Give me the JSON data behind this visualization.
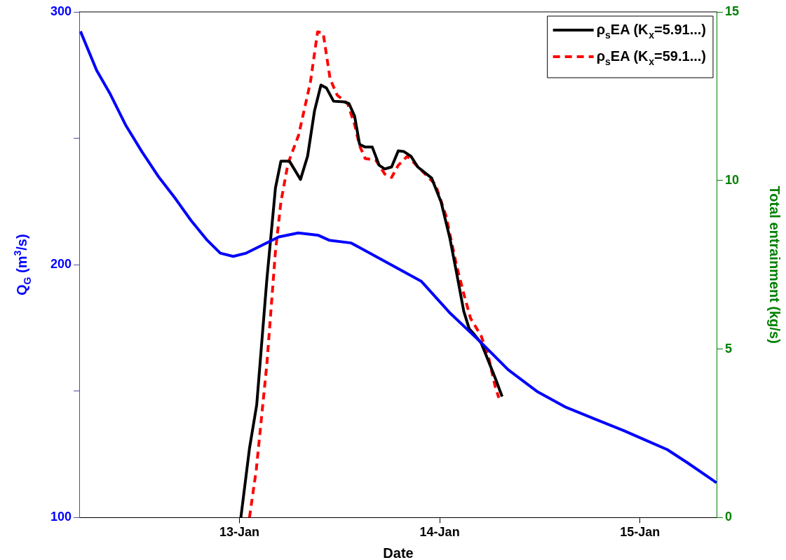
{
  "chart_data": {
    "type": "line",
    "xlabel": "Date",
    "ylabel": "Q$_{G}$ (m$^{3}$/s)",
    "y2label": "Total entrainment (kg/s)",
    "xlim": [
      "--01-12T04:48",
      "--01-15T09:16"
    ],
    "xticks": [
      {
        "value": "--01-13",
        "label": "13-Jan"
      },
      {
        "value": "--01-14",
        "label": "14-Jan"
      },
      {
        "value": "--01-15",
        "label": "15-Jan"
      }
    ],
    "ylim": [
      100,
      300
    ],
    "yticks": [
      100,
      {
        "value": 150,
        "label": null
      },
      200,
      {
        "value": 250,
        "label": null
      },
      300
    ],
    "y2lim": [
      0,
      15
    ],
    "y2ticks": [
      0,
      5,
      10,
      15
    ],
    "grid": false,
    "legend": "top right",
    "marker": "none",
    "series": [
      {
        "color": "#0000ff",
        "line_style": "solid",
        "x": [
          "--01-12T04:57",
          "--01-12T06:53",
          "--01-12T08:27",
          "--01-12T10:24",
          "--01-12T12:20",
          "--01-12T14:17",
          "--01-12T16:15",
          "--01-12T18:12",
          "--01-12T20:08",
          "--01-12T21:42",
          "--01-12T23:15",
          "--01-13T00:49",
          "--01-13T02:23",
          "--01-13T04:42",
          "--01-13T07:03",
          "--01-13T09:24",
          "--01-13T10:45",
          "--01-13T13:24",
          "--01-13T17:36",
          "--01-13T21:49",
          "--01-14T01:16",
          "--01-14T04:45",
          "--01-14T08:12",
          "--01-14T11:40",
          "--01-14T15:09",
          "--01-14T18:36",
          "--01-14T22:03",
          "--01-15T00:50",
          "--01-15T03:16",
          "--01-15T05:41",
          "--01-15T09:10"
        ],
        "values": [
          292.3,
          276.9,
          267.9,
          255.0,
          244.6,
          234.9,
          226.5,
          217.5,
          209.7,
          204.6,
          203.3,
          204.6,
          207.2,
          211.0,
          212.6,
          211.7,
          209.7,
          208.6,
          201,
          193.4,
          180.8,
          169.9,
          158.5,
          149.9,
          143.6,
          139.0,
          134.4,
          130.4,
          126.9,
          121.7,
          113.8
        ]
      },
      {
        "name": "ρ$_{s}$EA (K$_{x}$=5.91...)",
        "color": "#000000",
        "axis": "y2",
        "line_style": "solid",
        "x": [
          "--01-13T00:10",
          "--01-13T01:12",
          "--01-13T02:04",
          "--01-13T03:17",
          "--01-13T04:19",
          "--01-13T04:58",
          "--01-13T06:00",
          "--01-13T07:19",
          "--01-13T08:10",
          "--01-13T09:00",
          "--01-13T09:46",
          "--01-13T10:26",
          "--01-13T11:17",
          "--01-13T12:33",
          "--01-13T13:08",
          "--01-13T13:48",
          "--01-13T14:24",
          "--01-13T15:04",
          "--01-13T15:55",
          "--01-13T16:45",
          "--01-13T17:25",
          "--01-13T18:14",
          "--01-13T19:02",
          "--01-13T19:41",
          "--01-13T20:33",
          "--01-13T21:22",
          "--01-13T23:02",
          "--01-14T00:10",
          "--01-14T01:12",
          "--01-14T02:01",
          "--01-14T02:53",
          "--01-14T03:32",
          "--01-14T04:05",
          "--01-14T04:58",
          "--01-14T05:49",
          "--01-14T06:39",
          "--01-14T07:29"
        ],
        "values": [
          0,
          2.05,
          3.34,
          7.06,
          9.78,
          10.57,
          10.57,
          10.03,
          10.72,
          12.07,
          12.83,
          12.74,
          12.35,
          12.33,
          12.28,
          11.91,
          11.07,
          10.99,
          10.99,
          10.45,
          10.34,
          10.4,
          10.88,
          10.86,
          10.72,
          10.4,
          10.07,
          9.36,
          8.31,
          7.27,
          6.12,
          5.6,
          5.45,
          5.18,
          4.66,
          4.14,
          3.59
        ]
      },
      {
        "name": "ρ$_{s}$EA (K$_{x}$=59.1...)",
        "color": "#ff0000",
        "axis": "y2",
        "line_style": "dashed",
        "x": [
          "--01-13T01:12",
          "--01-13T02:01",
          "--01-13T03:17",
          "--01-13T04:19",
          "--01-13T04:58",
          "--01-13T05:49",
          "--01-13T07:05",
          "--01-13T08:30",
          "--01-13T09:22",
          "--01-13T10:02",
          "--01-13T10:52",
          "--01-13T11:43",
          "--01-13T12:58",
          "--01-13T13:48",
          "--01-13T14:24",
          "--01-13T15:04",
          "--01-13T16:19",
          "--01-13T17:25",
          "--01-13T18:14",
          "--01-13T19:02",
          "--01-13T20:07",
          "--01-13T21:49",
          "--01-13T23:30",
          "--01-14T00:46",
          "--01-14T02:01",
          "--01-14T02:53",
          "--01-14T03:42",
          "--01-14T04:58",
          "--01-14T05:49",
          "--01-14T06:39",
          "--01-14T07:05"
        ],
        "values": [
          0,
          1.42,
          4.55,
          7.9,
          9.36,
          10.5,
          11.34,
          12.91,
          14.41,
          14.37,
          13.01,
          12.53,
          12.28,
          11.66,
          11.03,
          10.65,
          10.61,
          10.19,
          10.09,
          10.45,
          10.72,
          10.3,
          9.88,
          8.94,
          7.48,
          6.64,
          5.91,
          5.39,
          4.8,
          3.89,
          3.55
        ]
      }
    ]
  }
}
